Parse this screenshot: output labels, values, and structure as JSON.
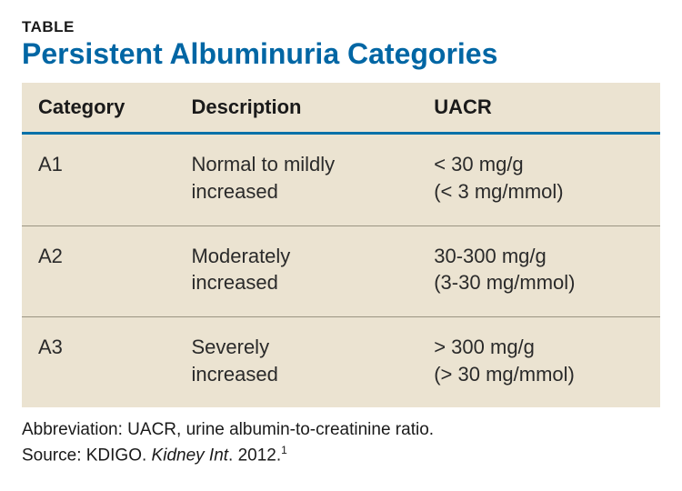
{
  "label": "TABLE",
  "title": "Persistent Albuminuria Categories",
  "style": {
    "title_color": "#0066a4",
    "table_bg": "#ebe3d1",
    "header_border_color": "#0071a8",
    "row_border_color": "#9a9482",
    "text_color": "#1a1a1a",
    "body_text_color": "#2a2a2a",
    "title_fontsize": 32,
    "header_fontsize": 22,
    "cell_fontsize": 22,
    "footnote_fontsize": 19
  },
  "columns": [
    {
      "key": "category",
      "label": "Category",
      "width": "24%"
    },
    {
      "key": "description",
      "label": "Description",
      "width": "38%"
    },
    {
      "key": "uacr",
      "label": "UACR",
      "width": "38%"
    }
  ],
  "rows": [
    {
      "category": "A1",
      "description_l1": "Normal to mildly",
      "description_l2": "increased",
      "uacr_l1": "< 30 mg/g",
      "uacr_l2": "(< 3 mg/mmol)"
    },
    {
      "category": "A2",
      "description_l1": "Moderately",
      "description_l2": "increased",
      "uacr_l1": "30-300 mg/g",
      "uacr_l2": "(3-30 mg/mmol)"
    },
    {
      "category": "A3",
      "description_l1": "Severely",
      "description_l2": "increased",
      "uacr_l1": "> 300 mg/g",
      "uacr_l2": "(> 30 mg/mmol)"
    }
  ],
  "footnotes": {
    "abbrev": "Abbreviation: UACR, urine albumin-to-creatinine ratio.",
    "source_prefix": "Source: KDIGO. ",
    "source_italic": "Kidney Int",
    "source_suffix": ". 2012.",
    "source_sup": "1"
  }
}
